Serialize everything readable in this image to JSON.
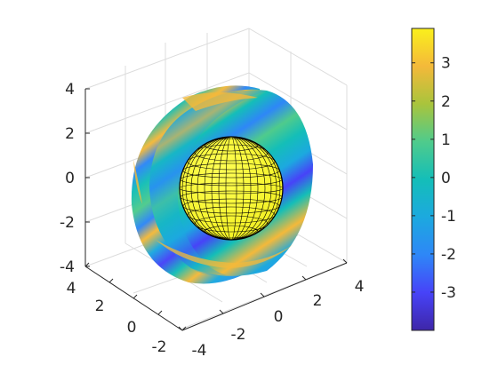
{
  "chart_data": {
    "type": "surface3d",
    "title": "",
    "axes": {
      "z_ticks": [
        "4",
        "2",
        "0",
        "-2",
        "-4"
      ],
      "x_ticks": [
        "4",
        "2",
        "0",
        "-2",
        "-4"
      ],
      "y_ticks": [
        "-4",
        "-2",
        "0",
        "2",
        "4"
      ],
      "x_range": [
        -4,
        4
      ],
      "y_range": [
        -4,
        4
      ],
      "z_range": [
        -4,
        4
      ],
      "grid": true
    },
    "colorbar": {
      "colormap": "parula",
      "range": [
        -4,
        3.9
      ],
      "ticks": [
        "3",
        "2",
        "1",
        "0",
        "-1",
        "-2",
        "-3"
      ],
      "tick_values": [
        3,
        2,
        1,
        0,
        -1,
        -2,
        -3
      ],
      "placement": "right"
    },
    "objects": [
      {
        "name": "inner-sphere",
        "radius": 2,
        "style": "yellow faces with black mesh edges"
      },
      {
        "name": "outer-shell-cutaway",
        "radius": 4,
        "style": "interpolated colour slices, quarter removed"
      }
    ],
    "colors": {
      "colormap_stops": [
        "#3e26a8",
        "#4743f8",
        "#2e87f7",
        "#1ca9df",
        "#14beb8",
        "#4fcb8c",
        "#a9c43c",
        "#f4b93a",
        "#faf01c"
      ],
      "sphere_face": "#ffff33",
      "mesh_edge": "#000000",
      "axis_line": "#262626",
      "grid_line": "#dcdcdc"
    }
  }
}
